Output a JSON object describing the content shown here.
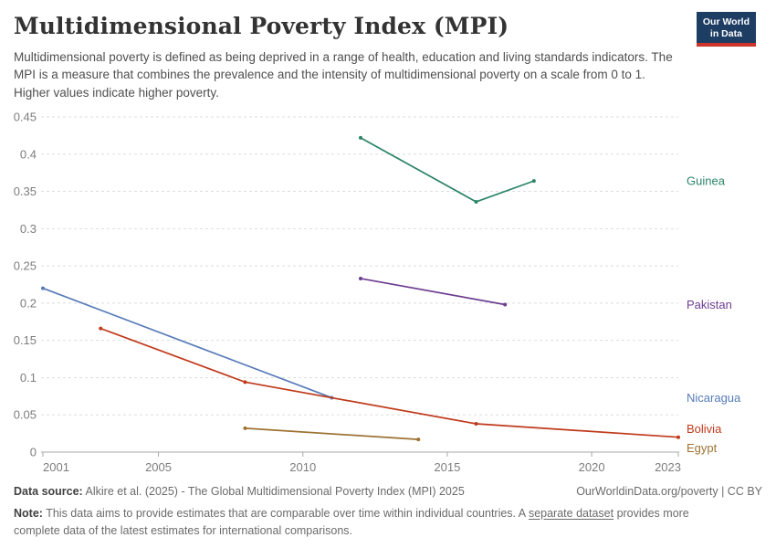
{
  "header": {
    "title": "Multidimensional Poverty Index (MPI)",
    "subtitle": "Multidimensional poverty is defined as being deprived in a range of health, education and living standards indicators. The MPI is a measure that combines the prevalence and the intensity of multidimensional poverty on a scale from 0 to 1. Higher values indicate higher poverty.",
    "logo": {
      "line1": "Our World",
      "line2": "in Data"
    }
  },
  "chart_data": {
    "type": "line",
    "title": "Multidimensional Poverty Index (MPI)",
    "xlabel": "",
    "ylabel": "",
    "xlim": [
      2001,
      2023
    ],
    "ylim": [
      0,
      0.45
    ],
    "x_ticks": [
      2001,
      2005,
      2010,
      2015,
      2020,
      2023
    ],
    "y_ticks": [
      0,
      0.05,
      0.1,
      0.15,
      0.2,
      0.25,
      0.3,
      0.35,
      0.4,
      0.45
    ],
    "grid": "horizontal-dashed",
    "legend_position": "right-inline-labels",
    "series": [
      {
        "name": "Guinea",
        "color": "#2C8465",
        "points": [
          [
            2012,
            0.422
          ],
          [
            2016,
            0.336
          ],
          [
            2018,
            0.364
          ]
        ]
      },
      {
        "name": "Pakistan",
        "color": "#6D3E91",
        "points": [
          [
            2012,
            0.233
          ],
          [
            2017,
            0.198
          ]
        ]
      },
      {
        "name": "Nicaragua",
        "color": "#577BB8",
        "points": [
          [
            2001,
            0.22
          ],
          [
            2011,
            0.073
          ]
        ]
      },
      {
        "name": "Bolivia",
        "color": "#C03A1C",
        "points": [
          [
            2003,
            0.166
          ],
          [
            2008,
            0.094
          ],
          [
            2016,
            0.038
          ],
          [
            2023,
            0.02
          ]
        ]
      },
      {
        "name": "Egypt",
        "color": "#9D7333",
        "points": [
          [
            2008,
            0.032
          ],
          [
            2014,
            0.017
          ]
        ]
      }
    ]
  },
  "footer": {
    "source_label": "Data source:",
    "source_text": "Alkire et al. (2025) - The Global Multidimensional Poverty Index (MPI) 2025",
    "credit_link": "OurWorldinData.org/poverty",
    "credit_separator": "|",
    "credit_license": "CC BY",
    "note_label": "Note:",
    "note_before_link": "This data aims to provide estimates that are comparable over time within individual countries. A",
    "note_link": "separate dataset",
    "note_after_link": "provides more complete data of the latest estimates for international comparisons."
  }
}
